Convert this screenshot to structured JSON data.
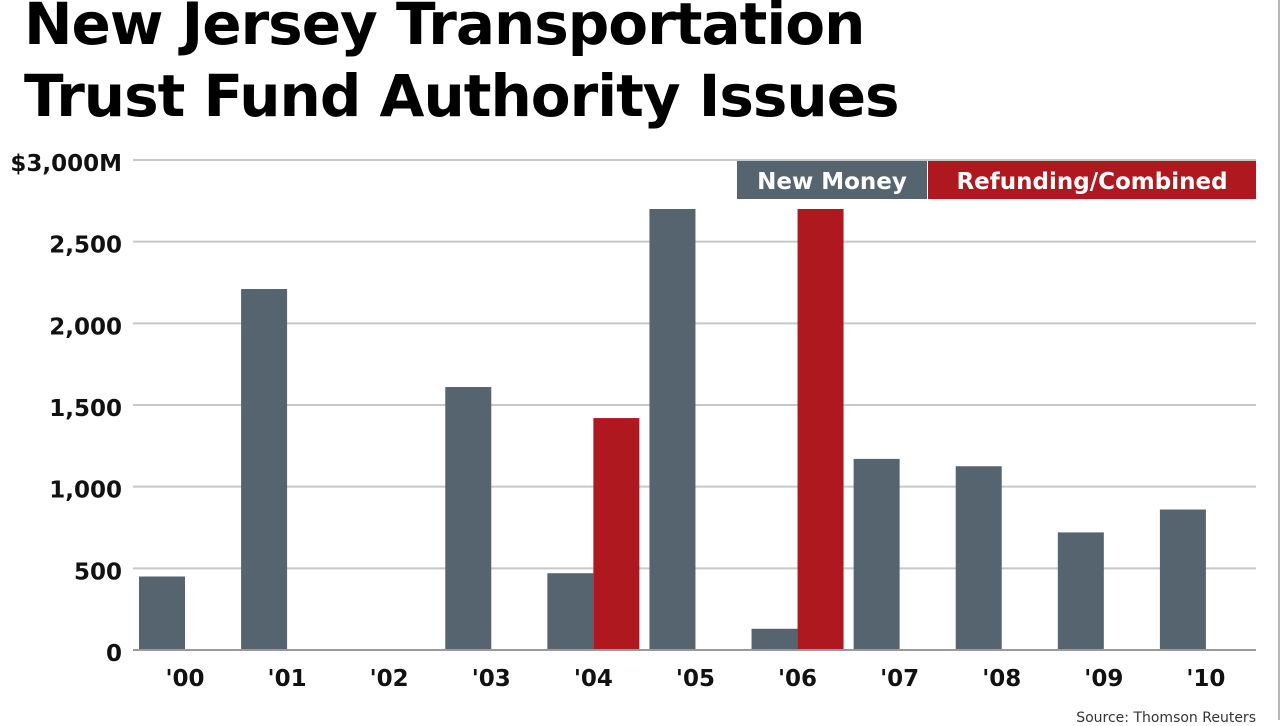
{
  "chart_data": {
    "type": "bar",
    "title_lines": [
      "New Jersey Transportation",
      "Trust Fund Authority Issues"
    ],
    "categories": [
      "'00",
      "'01",
      "'02",
      "'03",
      "'04",
      "'05",
      "'06",
      "'07",
      "'08",
      "'09",
      "'10"
    ],
    "series": [
      {
        "name": "New Money",
        "color": "#55646f",
        "values": [
          450,
          2210,
          0,
          1610,
          470,
          2700,
          130,
          1170,
          1125,
          720,
          860
        ]
      },
      {
        "name": "Refunding/Combined",
        "color": "#b01820",
        "values": [
          0,
          0,
          0,
          0,
          1420,
          0,
          2700,
          0,
          0,
          0,
          0
        ]
      }
    ],
    "ylim": [
      0,
      3000
    ],
    "yticks": [
      0,
      500,
      1000,
      1500,
      2000,
      2500,
      3000
    ],
    "ytick_labels": [
      "0",
      "500",
      "1,000",
      "1,500",
      "2,000",
      "2,500",
      "$3,000M"
    ],
    "grid": true,
    "legend": "top-right",
    "source": "Source: Thomson Reuters"
  }
}
